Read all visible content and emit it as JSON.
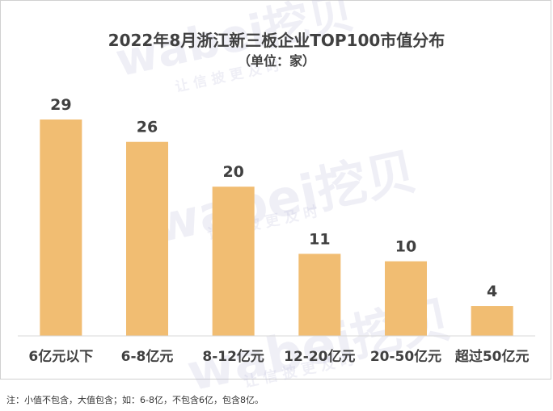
{
  "chart_data": {
    "type": "bar",
    "title": "2022年8月浙江新三板企业TOP100市值分布",
    "subtitle": "（单位：家）",
    "categories": [
      "6亿元以下",
      "6-8亿元",
      "8-12亿元",
      "12-20亿元",
      "20-50亿元",
      "超过50亿元"
    ],
    "values": [
      29,
      26,
      20,
      11,
      10,
      4
    ],
    "ylim": [
      0,
      29
    ],
    "grid": false,
    "legend": "none",
    "bar_color": "#F1BD72"
  },
  "note": "注：小值不包含，大值包含；如：6-8亿，不包含6亿，包含8亿。",
  "watermark": {
    "brand": "wabei挖贝",
    "slogan": "让 信 披 更 及 时"
  }
}
